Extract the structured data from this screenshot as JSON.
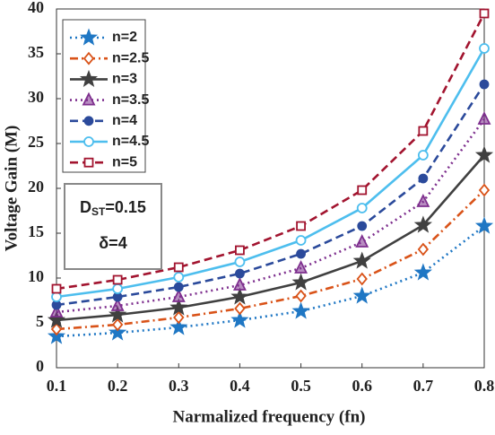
{
  "chart_data": {
    "type": "line",
    "x_label": "Narmalized frequency (fn)",
    "y_label": "Voltage Gain (M)",
    "x": [
      0.1,
      0.2,
      0.3,
      0.4,
      0.5,
      0.6,
      0.7,
      0.8
    ],
    "xlim": [
      0.1,
      0.8
    ],
    "xticks": [
      0.1,
      0.2,
      0.3,
      0.4,
      0.5,
      0.6,
      0.7,
      0.8
    ],
    "ylim": [
      0,
      40
    ],
    "yticks": [
      0,
      5,
      10,
      15,
      20,
      25,
      30,
      35,
      40
    ],
    "legend": "upper left",
    "annotations": [
      [
        "D",
        "ST",
        "=0.15"
      ],
      "δ=4"
    ],
    "series": [
      {
        "name": "n=2",
        "color": "#1f77c4",
        "marker": "star",
        "dash": "dotted",
        "values": [
          3.5,
          3.9,
          4.5,
          5.3,
          6.3,
          8.0,
          10.6,
          15.8
        ]
      },
      {
        "name": "n=2.5",
        "color": "#d95319",
        "marker": "diamond",
        "dash": "dashdot",
        "values": [
          4.3,
          4.8,
          5.6,
          6.6,
          8.0,
          9.9,
          13.2,
          19.8
        ]
      },
      {
        "name": "n=3",
        "color": "#404040",
        "marker": "star",
        "dash": "solid",
        "values": [
          5.3,
          5.9,
          6.7,
          7.9,
          9.5,
          11.9,
          15.9,
          23.7
        ]
      },
      {
        "name": "n=3.5",
        "color": "#7e2f8e",
        "marker": "triangle",
        "dash": "dotted",
        "values": [
          6.2,
          6.9,
          7.9,
          9.2,
          11.1,
          14.0,
          18.5,
          27.7
        ]
      },
      {
        "name": "n=4",
        "color": "#2b4a9b",
        "marker": "dot",
        "dash": "dashed",
        "values": [
          7.0,
          7.9,
          9.0,
          10.5,
          12.7,
          15.8,
          21.1,
          31.6
        ]
      },
      {
        "name": "n=4.5",
        "color": "#4dbeee",
        "marker": "circle",
        "dash": "solid",
        "values": [
          7.9,
          8.8,
          10.1,
          11.8,
          14.2,
          17.8,
          23.7,
          35.6
        ]
      },
      {
        "name": "n=5",
        "color": "#a2142f",
        "marker": "square",
        "dash": "dashed",
        "values": [
          8.8,
          9.8,
          11.2,
          13.1,
          15.8,
          19.8,
          26.4,
          39.5
        ]
      }
    ]
  }
}
